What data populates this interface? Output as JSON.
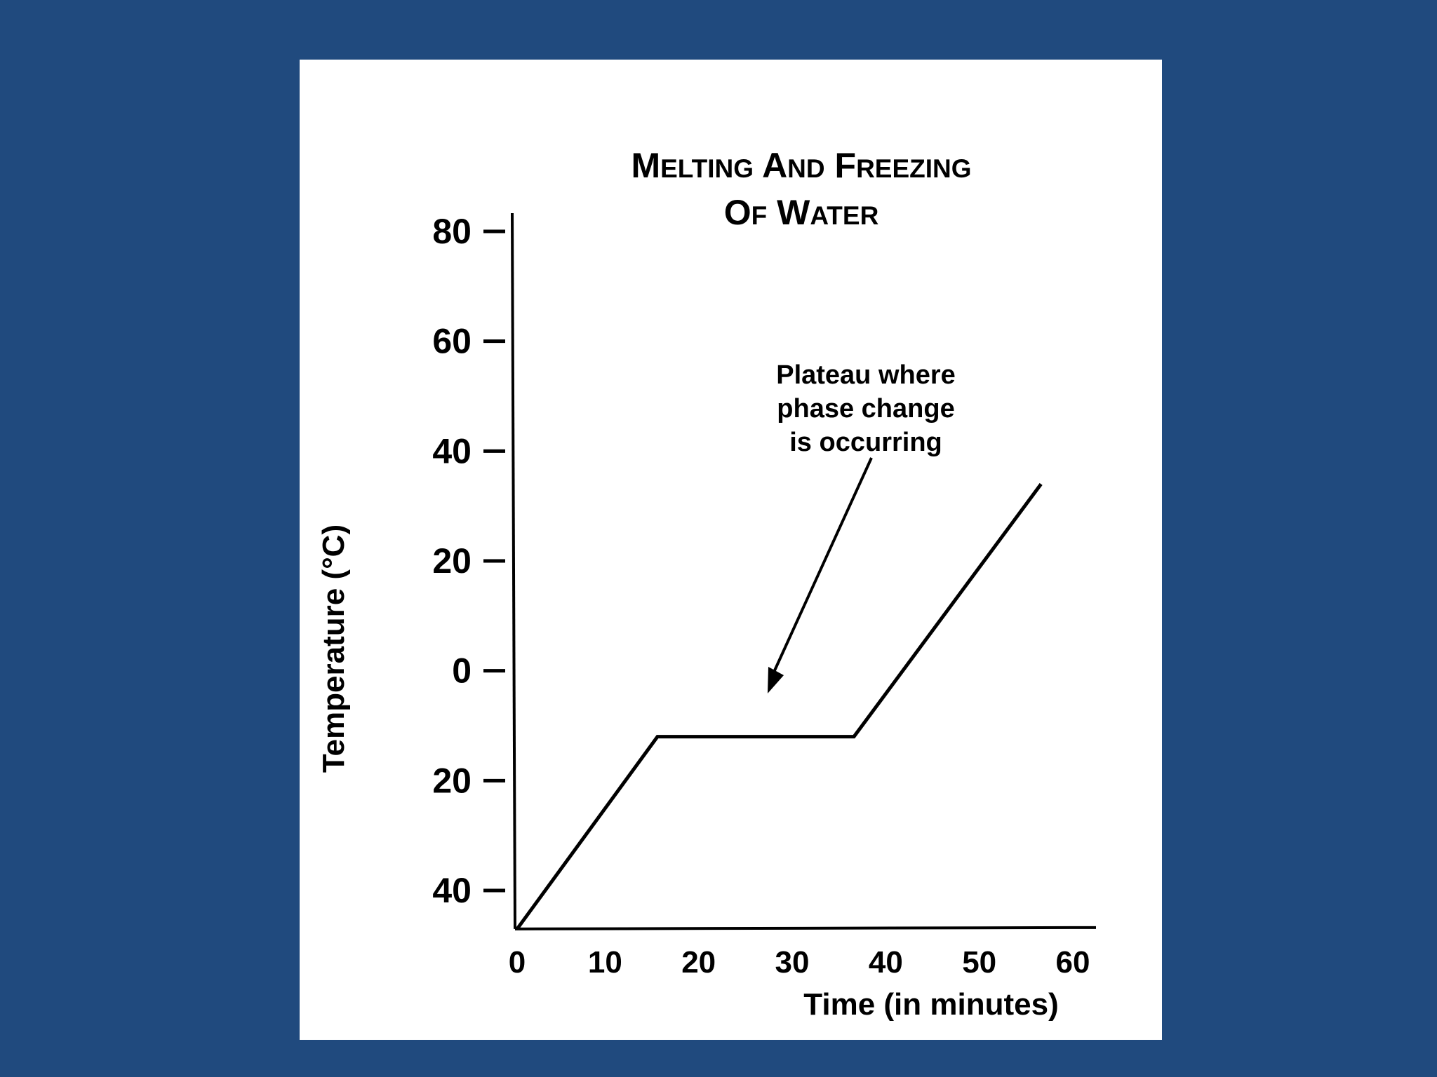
{
  "slide": {
    "background": "#204a7e",
    "panel": "#ffffff"
  },
  "chart_data": {
    "type": "line",
    "title_lines": [
      "Melting And Freezing",
      "Of Water"
    ],
    "xlabel": "Time (in minutes)",
    "ylabel": "Temperature (°C)",
    "x_ticks": [
      {
        "value": 0,
        "label": "0"
      },
      {
        "value": 10,
        "label": "10"
      },
      {
        "value": 20,
        "label": "20"
      },
      {
        "value": 30,
        "label": "30"
      },
      {
        "value": 40,
        "label": "40"
      },
      {
        "value": 50,
        "label": "50"
      },
      {
        "value": 60,
        "label": "60"
      }
    ],
    "y_ticks": [
      {
        "value": 80,
        "label": "80"
      },
      {
        "value": 60,
        "label": "60"
      },
      {
        "value": 40,
        "label": "40"
      },
      {
        "value": 20,
        "label": "20"
      },
      {
        "value": 0,
        "label": "0"
      },
      {
        "value": -20,
        "label": "20"
      },
      {
        "value": -40,
        "label": "40"
      }
    ],
    "xlim": [
      0,
      61
    ],
    "ylim": [
      -47,
      83
    ],
    "grid": false,
    "legend": "none",
    "series": [
      {
        "points": [
          {
            "x": 0,
            "y": -47
          },
          {
            "x": 15,
            "y": -12
          },
          {
            "x": 36,
            "y": -12
          },
          {
            "x": 56,
            "y": 34
          }
        ],
        "color": "#000000"
      }
    ],
    "annotation": {
      "lines": [
        "Plateau where",
        "phase change",
        "is occurring"
      ],
      "arrow_from": {
        "x": 37,
        "y": 38
      },
      "arrow_to": {
        "x": 27,
        "y": -4
      }
    }
  }
}
